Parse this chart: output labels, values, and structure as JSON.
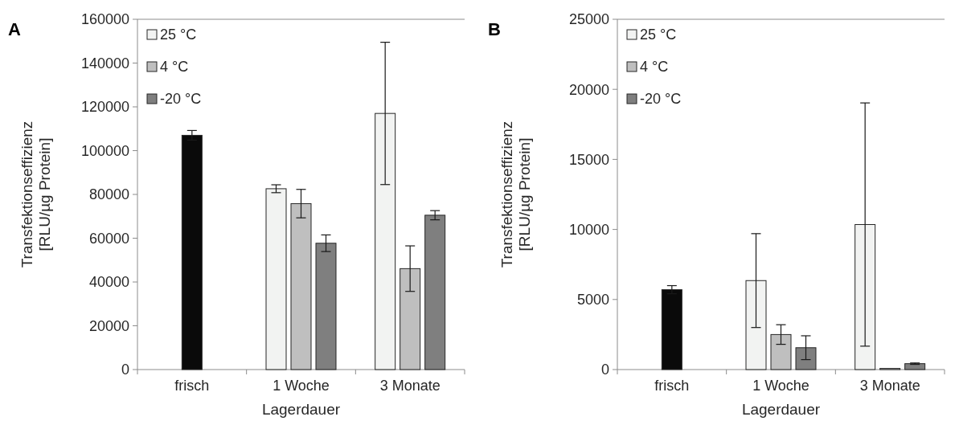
{
  "chart_data": [
    {
      "type": "bar",
      "title": "A",
      "xlabel": "Lagerdauer",
      "ylabel": "Transfektionseffizienz\n[RLU/µg Protein]",
      "categories": [
        "frisch",
        "1 Woche",
        "3 Monate"
      ],
      "ylim": [
        0,
        160000
      ],
      "yticks": [
        0,
        20000,
        40000,
        60000,
        80000,
        100000,
        120000,
        140000,
        160000
      ],
      "legend": "top left",
      "grid": false,
      "series": [
        {
          "color": "#0a0a0a",
          "values": [
            107000,
            null,
            null
          ],
          "errors": [
            2200,
            null,
            null
          ]
        },
        {
          "name": "25 °C",
          "color": "#f2f3f2",
          "values": [
            null,
            82600,
            117000
          ],
          "errors": [
            null,
            1800,
            32500
          ]
        },
        {
          "name": "4 °C",
          "color": "#bfbfbf",
          "values": [
            null,
            75800,
            46100
          ],
          "errors": [
            null,
            6500,
            10400
          ]
        },
        {
          "name": "-20 °C",
          "color": "#7f7f7f",
          "values": [
            null,
            57700,
            70500
          ],
          "errors": [
            null,
            3800,
            2100
          ]
        }
      ]
    },
    {
      "type": "bar",
      "title": "B",
      "xlabel": "Lagerdauer",
      "ylabel": "Transfektionseffizienz\n[RLU/µg Protein]",
      "categories": [
        "frisch",
        "1 Woche",
        "3 Monate"
      ],
      "ylim": [
        0,
        25000
      ],
      "yticks": [
        0,
        5000,
        10000,
        15000,
        20000,
        25000
      ],
      "legend": "top left",
      "grid": false,
      "series": [
        {
          "color": "#0a0a0a",
          "values": [
            5700,
            null,
            null
          ],
          "errors": [
            290,
            null,
            null
          ]
        },
        {
          "name": "25 °C",
          "color": "#f2f3f2",
          "values": [
            null,
            6350,
            10350
          ],
          "errors": [
            null,
            3350,
            8680
          ]
        },
        {
          "name": "4 °C",
          "color": "#bfbfbf",
          "values": [
            null,
            2500,
            80
          ],
          "errors": [
            null,
            700,
            null
          ]
        },
        {
          "name": "-20 °C",
          "color": "#7f7f7f",
          "values": [
            null,
            1560,
            420
          ],
          "errors": [
            null,
            850,
            50
          ]
        }
      ]
    }
  ]
}
